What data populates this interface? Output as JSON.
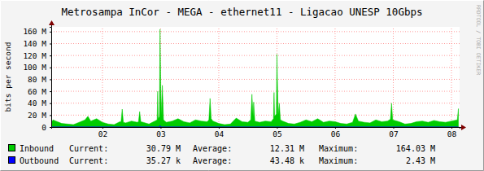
{
  "chart_data": {
    "type": "area",
    "title": "Metrosampa InCor - MEGA - ethernet11 - Ligacao UNESP 10Gbps",
    "y_label": "bits per second",
    "annotations": [
      "RRDTOOL / TOBI OETIKER"
    ],
    "stat_labels": [
      "Current:",
      "Average:",
      "Maximum:"
    ],
    "grid": true,
    "xlim": [
      1.12,
      8.14
    ],
    "xticks": [
      {
        "value": 2,
        "label": "02"
      },
      {
        "value": 3,
        "label": "03"
      },
      {
        "value": 4,
        "label": "04"
      },
      {
        "value": 5,
        "label": "05"
      },
      {
        "value": 6,
        "label": "06"
      },
      {
        "value": 7,
        "label": "07"
      },
      {
        "value": 8,
        "label": "08"
      }
    ],
    "ylim": [
      0,
      168
    ],
    "yticks": [
      0,
      {
        "value": 20,
        "label": "20 M"
      },
      {
        "value": 40,
        "label": "40 M"
      },
      {
        "value": 60,
        "label": "60 M"
      },
      {
        "value": 80,
        "label": "80 M"
      },
      {
        "value": 100,
        "label": "100 M"
      },
      {
        "value": 120,
        "label": "120 M"
      },
      {
        "value": 140,
        "label": "140 M"
      },
      {
        "value": 160,
        "label": "160 M"
      }
    ],
    "x": [
      1.12,
      1.15,
      1.2,
      1.3,
      1.4,
      1.5,
      1.6,
      1.7,
      1.75,
      1.8,
      1.9,
      2.0,
      2.1,
      2.2,
      2.3,
      2.32,
      2.34,
      2.36,
      2.4,
      2.5,
      2.6,
      2.62,
      2.64,
      2.66,
      2.7,
      2.8,
      2.9,
      2.94,
      2.95,
      2.96,
      2.98,
      2.99,
      3.01,
      3.03,
      3.05,
      3.1,
      3.2,
      3.3,
      3.4,
      3.5,
      3.6,
      3.7,
      3.8,
      3.83,
      3.85,
      3.87,
      3.9,
      4.0,
      4.1,
      4.2,
      4.3,
      4.4,
      4.5,
      4.55,
      4.57,
      4.59,
      4.6,
      4.62,
      4.7,
      4.8,
      4.9,
      4.94,
      4.95,
      4.96,
      4.99,
      5.0,
      5.02,
      5.04,
      5.06,
      5.1,
      5.2,
      5.3,
      5.4,
      5.5,
      5.6,
      5.7,
      5.8,
      5.9,
      6.0,
      6.1,
      6.2,
      6.3,
      6.35,
      6.4,
      6.5,
      6.6,
      6.7,
      6.8,
      6.9,
      6.95,
      6.97,
      6.99,
      7.1,
      7.2,
      7.3,
      7.4,
      7.5,
      7.6,
      7.7,
      7.8,
      7.9,
      8.0,
      8.1,
      8.12
    ],
    "series": [
      {
        "name": "Inbound",
        "type": "area",
        "color": "#00cc00",
        "stats": [
          "30.79 M",
          "12.31 M",
          "164.03 M"
        ],
        "values": [
          8,
          12,
          10,
          6,
          5,
          4,
          8,
          12,
          18,
          10,
          14,
          8,
          5,
          4,
          9,
          9,
          30,
          8,
          7,
          10,
          8,
          9,
          26,
          9,
          8,
          5,
          10,
          12,
          60,
          14,
          18,
          164.03,
          20,
          70,
          12,
          8,
          10,
          14,
          9,
          7,
          12,
          10,
          9,
          12,
          48,
          14,
          10,
          6,
          4,
          5,
          15,
          9,
          8,
          12,
          55,
          18,
          42,
          10,
          8,
          10,
          9,
          14,
          58,
          18,
          22,
          122,
          20,
          40,
          12,
          10,
          6,
          5,
          8,
          12,
          9,
          14,
          8,
          10,
          9,
          6,
          5,
          8,
          22,
          10,
          8,
          7,
          12,
          9,
          10,
          13,
          40,
          12,
          9,
          5,
          6,
          9,
          10,
          8,
          11,
          9,
          8,
          10,
          12,
          30.79
        ]
      },
      {
        "name": "Outbound",
        "type": "line",
        "color": "#0000ff",
        "stats": [
          "35.27 k",
          "43.48 k",
          "2.43 M"
        ],
        "values": [
          0.04,
          0.04,
          0.04,
          0.04,
          0.04,
          0.04,
          0.04,
          0.04,
          0.04,
          0.04,
          0.04,
          0.04,
          0.04,
          0.04,
          0.04,
          0.04,
          0.04,
          0.04,
          0.04,
          0.04,
          0.04,
          0.04,
          0.04,
          0.04,
          0.04,
          0.04,
          0.04,
          0.04,
          0.04,
          0.04,
          0.04,
          2.43,
          0.04,
          0.04,
          0.04,
          0.04,
          0.04,
          0.04,
          0.04,
          0.04,
          0.04,
          0.04,
          0.04,
          0.04,
          0.04,
          0.04,
          0.04,
          0.04,
          0.04,
          0.04,
          0.04,
          0.04,
          0.04,
          0.04,
          0.04,
          0.04,
          0.04,
          0.04,
          0.04,
          0.04,
          0.04,
          0.04,
          0.04,
          0.04,
          0.04,
          0.04,
          0.04,
          0.04,
          0.04,
          0.04,
          0.04,
          0.04,
          0.04,
          0.04,
          0.04,
          0.04,
          0.04,
          0.04,
          0.04,
          0.04,
          0.04,
          0.04,
          0.04,
          0.04,
          0.04,
          0.04,
          0.04,
          0.04,
          0.04,
          0.04,
          0.04,
          0.04,
          0.04,
          0.04,
          0.04,
          0.04,
          0.04,
          0.04,
          0.04,
          0.04,
          0.04,
          0.04,
          0.04,
          0.035
        ]
      }
    ]
  }
}
